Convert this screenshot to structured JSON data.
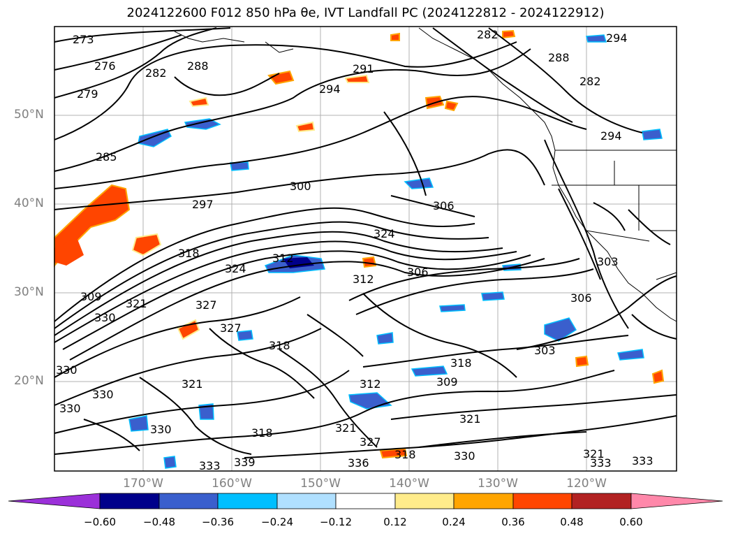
{
  "title": "2024122600 F012 850 hPa θe, IVT Landfall PC (2024122812 - 2024122912)",
  "map": {
    "lat_labels": [
      "50°N",
      "40°N",
      "30°N",
      "20°N"
    ],
    "lon_labels": [
      "170°W",
      "160°W",
      "150°W",
      "140°W",
      "130°W",
      "120°W"
    ],
    "contour_labels": [
      "273",
      "276",
      "279",
      "282",
      "285",
      "288",
      "291",
      "294",
      "297",
      "300",
      "306",
      "309",
      "312",
      "318",
      "321",
      "324",
      "327",
      "330",
      "333",
      "336",
      "339",
      "303"
    ]
  },
  "colorbar": {
    "ticks": [
      "−0.60",
      "−0.48",
      "−0.36",
      "−0.24",
      "−0.12",
      "0.12",
      "0.24",
      "0.36",
      "0.48",
      "0.60"
    ],
    "colors": [
      "#9b30d9",
      "#00008b",
      "#3a5fcd",
      "#00bfff",
      "#b0e0ff",
      "#ffffff",
      "#ffec8b",
      "#ffa500",
      "#ff4500",
      "#b22222",
      "#ff88aa"
    ]
  }
}
